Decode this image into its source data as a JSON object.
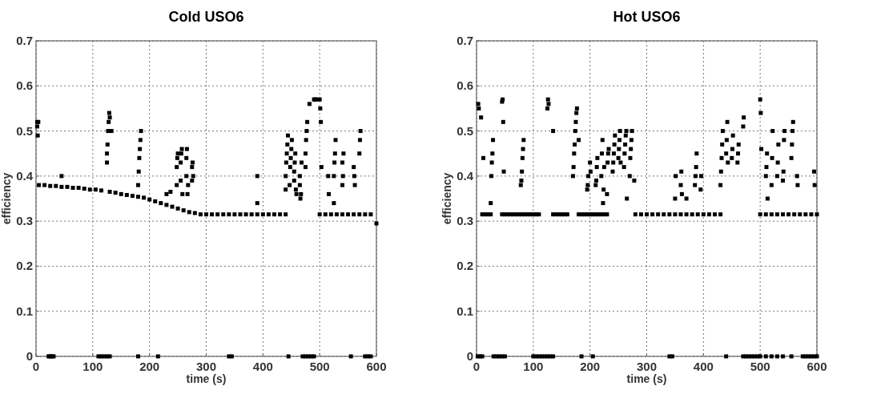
{
  "chart_data": [
    {
      "type": "scatter",
      "title": "Cold USO6",
      "xlabel": "time (s)",
      "ylabel": "efficiency",
      "xlim": [
        0,
        600
      ],
      "ylim": [
        0,
        0.7
      ],
      "xticks": [
        0,
        100,
        200,
        300,
        400,
        500,
        600
      ],
      "yticks": [
        0,
        0.1,
        0.2,
        0.3,
        0.4,
        0.5,
        0.6,
        0.7
      ],
      "grid": true,
      "marker": "square",
      "series": [
        {
          "color": "#000000",
          "x": [
            5,
            15,
            25,
            35,
            45,
            55,
            65,
            75,
            85,
            95,
            105,
            115,
            130,
            140,
            150,
            160,
            170,
            180,
            190,
            200,
            210,
            220,
            230,
            240,
            250,
            260,
            270,
            280,
            290,
            300,
            310,
            320,
            330,
            340,
            350,
            360,
            370,
            380,
            390,
            400,
            410,
            420,
            430,
            440,
            500,
            510,
            520,
            530,
            540,
            550,
            560,
            570,
            580,
            590,
            600
          ],
          "values": [
            0.38,
            0.38,
            0.378,
            0.378,
            0.376,
            0.376,
            0.374,
            0.374,
            0.372,
            0.37,
            0.37,
            0.368,
            0.365,
            0.363,
            0.36,
            0.358,
            0.356,
            0.354,
            0.352,
            0.348,
            0.344,
            0.34,
            0.336,
            0.332,
            0.328,
            0.324,
            0.32,
            0.318,
            0.315,
            0.315,
            0.315,
            0.315,
            0.315,
            0.315,
            0.315,
            0.315,
            0.315,
            0.315,
            0.315,
            0.315,
            0.315,
            0.315,
            0.315,
            0.315,
            0.315,
            0.315,
            0.315,
            0.315,
            0.315,
            0.315,
            0.315,
            0.315,
            0.315,
            0.315,
            0.295
          ]
        },
        {
          "color": "#000000",
          "x": [
            2,
            2,
            3,
            4,
            45,
            125,
            125,
            126,
            127,
            128,
            129,
            130,
            133,
            180,
            181,
            182,
            183,
            184,
            185,
            230,
            237,
            248,
            248,
            249,
            250,
            255,
            255,
            256,
            257,
            258,
            265,
            265,
            266,
            267,
            268,
            275,
            275,
            276,
            277,
            390,
            390,
            440,
            440,
            441,
            442,
            443,
            444,
            447,
            448,
            449,
            450,
            451,
            455,
            455,
            456,
            457,
            458,
            459,
            465,
            465,
            466,
            467,
            468,
            475,
            475,
            476,
            477,
            478,
            482,
            490,
            492,
            494,
            500,
            501,
            502,
            503,
            515,
            516,
            525,
            525,
            526,
            527,
            528,
            540,
            540,
            541,
            542,
            560,
            561,
            562,
            570,
            571,
            572
          ],
          "values": [
            0.52,
            0.51,
            0.49,
            0.52,
            0.4,
            0.43,
            0.45,
            0.47,
            0.5,
            0.52,
            0.54,
            0.53,
            0.5,
            0.38,
            0.41,
            0.44,
            0.46,
            0.48,
            0.5,
            0.36,
            0.365,
            0.38,
            0.42,
            0.44,
            0.45,
            0.39,
            0.43,
            0.45,
            0.46,
            0.36,
            0.4,
            0.44,
            0.46,
            0.36,
            0.38,
            0.39,
            0.42,
            0.43,
            0.4,
            0.34,
            0.4,
            0.37,
            0.4,
            0.43,
            0.45,
            0.47,
            0.49,
            0.38,
            0.42,
            0.44,
            0.46,
            0.48,
            0.39,
            0.41,
            0.43,
            0.45,
            0.37,
            0.36,
            0.4,
            0.38,
            0.35,
            0.36,
            0.43,
            0.42,
            0.45,
            0.48,
            0.5,
            0.52,
            0.56,
            0.57,
            0.57,
            0.57,
            0.57,
            0.55,
            0.52,
            0.42,
            0.4,
            0.36,
            0.34,
            0.4,
            0.43,
            0.45,
            0.48,
            0.43,
            0.38,
            0.4,
            0.45,
            0.42,
            0.4,
            0.38,
            0.45,
            0.48,
            0.5
          ]
        },
        {
          "color": "#000000",
          "x": [
            22,
            25,
            28,
            31,
            110,
            115,
            120,
            125,
            130,
            180,
            215,
            340,
            345,
            445,
            470,
            475,
            480,
            485,
            490,
            555,
            580,
            585,
            590
          ],
          "values": [
            0,
            0,
            0,
            0,
            0,
            0,
            0,
            0,
            0,
            0,
            0,
            0,
            0,
            0,
            0,
            0,
            0,
            0,
            0,
            0,
            0,
            0,
            0
          ]
        }
      ]
    },
    {
      "type": "scatter",
      "title": "Hot USO6",
      "xlabel": "time (s)",
      "ylabel": "efficiency",
      "xlim": [
        0,
        600
      ],
      "ylim": [
        0,
        0.7
      ],
      "xticks": [
        0,
        100,
        200,
        300,
        400,
        500,
        600
      ],
      "yticks": [
        0,
        0.1,
        0.2,
        0.3,
        0.4,
        0.5,
        0.6,
        0.7
      ],
      "grid": true,
      "marker": "square",
      "series": [
        {
          "color": "#000000",
          "x": [
            10,
            15,
            20,
            25,
            45,
            50,
            55,
            60,
            65,
            70,
            75,
            80,
            85,
            90,
            95,
            100,
            105,
            110,
            135,
            140,
            145,
            150,
            155,
            160,
            180,
            185,
            190,
            195,
            200,
            205,
            210,
            215,
            220,
            225,
            230,
            280,
            290,
            300,
            310,
            320,
            330,
            340,
            350,
            360,
            370,
            380,
            390,
            400,
            410,
            420,
            430,
            500,
            510,
            520,
            530,
            540,
            550,
            560,
            570,
            580,
            590,
            600
          ],
          "values": [
            0.315,
            0.315,
            0.315,
            0.315,
            0.315,
            0.315,
            0.315,
            0.315,
            0.315,
            0.315,
            0.315,
            0.315,
            0.315,
            0.315,
            0.315,
            0.315,
            0.315,
            0.315,
            0.315,
            0.315,
            0.315,
            0.315,
            0.315,
            0.315,
            0.315,
            0.315,
            0.315,
            0.315,
            0.315,
            0.315,
            0.315,
            0.315,
            0.315,
            0.315,
            0.315,
            0.315,
            0.315,
            0.315,
            0.315,
            0.315,
            0.315,
            0.315,
            0.315,
            0.315,
            0.315,
            0.315,
            0.315,
            0.315,
            0.315,
            0.315,
            0.315,
            0.315,
            0.315,
            0.315,
            0.315,
            0.315,
            0.315,
            0.315,
            0.315,
            0.315,
            0.315,
            0.315
          ]
        },
        {
          "color": "#000000",
          "x": [
            3,
            4,
            8,
            12,
            25,
            26,
            27,
            28,
            29,
            45,
            46,
            47,
            48,
            78,
            79,
            80,
            81,
            82,
            83,
            125,
            126,
            127,
            135,
            170,
            171,
            172,
            173,
            174,
            175,
            176,
            177,
            180,
            195,
            196,
            197,
            200,
            201,
            210,
            211,
            212,
            213,
            220,
            221,
            222,
            223,
            224,
            225,
            230,
            231,
            232,
            233,
            240,
            241,
            242,
            243,
            244,
            250,
            251,
            252,
            253,
            254,
            260,
            261,
            262,
            263,
            264,
            265,
            270,
            271,
            272,
            273,
            274,
            278,
            350,
            351,
            360,
            361,
            362,
            370,
            385,
            386,
            387,
            388,
            395,
            396,
            430,
            431,
            432,
            433,
            434,
            440,
            441,
            442,
            443,
            450,
            451,
            452,
            460,
            461,
            462,
            470,
            471,
            500,
            501,
            502,
            510,
            511,
            512,
            513,
            520,
            521,
            522,
            530,
            531,
            532,
            540,
            541,
            542,
            543,
            555,
            556,
            557,
            558,
            565,
            566,
            595,
            596
          ],
          "values": [
            0.56,
            0.55,
            0.53,
            0.44,
            0.34,
            0.4,
            0.43,
            0.45,
            0.48,
            0.565,
            0.57,
            0.52,
            0.41,
            0.38,
            0.39,
            0.41,
            0.44,
            0.46,
            0.48,
            0.55,
            0.57,
            0.56,
            0.5,
            0.4,
            0.42,
            0.45,
            0.47,
            0.5,
            0.52,
            0.54,
            0.55,
            0.48,
            0.37,
            0.38,
            0.4,
            0.43,
            0.41,
            0.38,
            0.39,
            0.42,
            0.44,
            0.4,
            0.45,
            0.48,
            0.34,
            0.37,
            0.42,
            0.36,
            0.43,
            0.45,
            0.46,
            0.41,
            0.43,
            0.45,
            0.47,
            0.49,
            0.44,
            0.46,
            0.48,
            0.5,
            0.43,
            0.42,
            0.45,
            0.47,
            0.49,
            0.5,
            0.35,
            0.4,
            0.44,
            0.46,
            0.48,
            0.5,
            0.39,
            0.35,
            0.4,
            0.38,
            0.41,
            0.36,
            0.35,
            0.38,
            0.4,
            0.42,
            0.45,
            0.37,
            0.4,
            0.38,
            0.41,
            0.44,
            0.47,
            0.5,
            0.45,
            0.48,
            0.52,
            0.43,
            0.44,
            0.46,
            0.49,
            0.43,
            0.45,
            0.47,
            0.51,
            0.53,
            0.57,
            0.54,
            0.46,
            0.4,
            0.42,
            0.45,
            0.35,
            0.38,
            0.44,
            0.5,
            0.4,
            0.43,
            0.47,
            0.39,
            0.41,
            0.48,
            0.5,
            0.44,
            0.47,
            0.5,
            0.52,
            0.4,
            0.38,
            0.41,
            0.38
          ]
        },
        {
          "color": "#000000",
          "x": [
            2,
            6,
            10,
            30,
            35,
            40,
            45,
            50,
            100,
            105,
            110,
            115,
            120,
            125,
            130,
            135,
            185,
            205,
            340,
            345,
            440,
            470,
            475,
            480,
            485,
            490,
            495,
            500,
            510,
            520,
            530,
            540,
            555,
            575,
            580,
            585,
            590,
            595,
            600
          ],
          "values": [
            0,
            0,
            0,
            0,
            0,
            0,
            0,
            0,
            0,
            0,
            0,
            0,
            0,
            0,
            0,
            0,
            0,
            0,
            0,
            0,
            0,
            0,
            0,
            0,
            0,
            0,
            0,
            0,
            0,
            0,
            0,
            0,
            0,
            0,
            0,
            0,
            0,
            0,
            0
          ]
        }
      ]
    }
  ]
}
